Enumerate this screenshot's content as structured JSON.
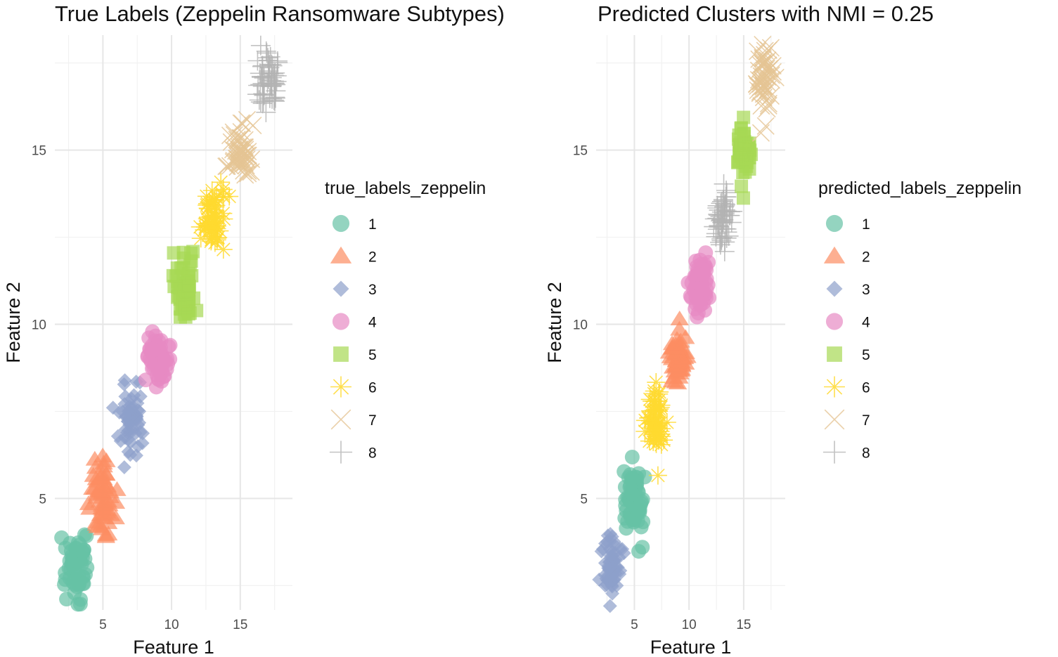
{
  "palette": [
    "#66c2a5",
    "#fc8d62",
    "#8da0cb",
    "#e78ac3",
    "#a6d854",
    "#ffd92f",
    "#e5c494",
    "#b3b3b3"
  ],
  "shapes": [
    "circle",
    "triangle",
    "diamond",
    "circle",
    "square",
    "asterisk",
    "cross",
    "plus"
  ],
  "chart_data": [
    {
      "type": "scatter",
      "title": "True Labels (Zeppelin Ransomware Subtypes)",
      "xlabel": "Feature 1",
      "ylabel": "Feature 2",
      "xlim": [
        1.5,
        18.8
      ],
      "ylim": [
        1.8,
        18.3
      ],
      "xticks": [
        5,
        10,
        15
      ],
      "yticks": [
        5,
        10,
        15
      ],
      "xtick_labels": [
        "5",
        "10",
        "15"
      ],
      "ytick_labels": [
        "5",
        "10",
        "15"
      ],
      "grid": true,
      "legend_title": "true_labels_zeppelin",
      "legend_position": "right",
      "clusters": [
        {
          "label": "1",
          "center": [
            3,
            3
          ],
          "spread": [
            0.45,
            0.45
          ],
          "n": 60
        },
        {
          "label": "2",
          "center": [
            5,
            5
          ],
          "spread": [
            0.5,
            0.5
          ],
          "n": 60
        },
        {
          "label": "3",
          "center": [
            7,
            7.2
          ],
          "spread": [
            0.5,
            0.5
          ],
          "n": 60
        },
        {
          "label": "4",
          "center": [
            9,
            9
          ],
          "spread": [
            0.4,
            0.35
          ],
          "n": 60
        },
        {
          "label": "5",
          "center": [
            11,
            11
          ],
          "spread": [
            0.45,
            0.45
          ],
          "n": 60
        },
        {
          "label": "6",
          "center": [
            13,
            13
          ],
          "spread": [
            0.4,
            0.45
          ],
          "n": 60
        },
        {
          "label": "7",
          "center": [
            15,
            15
          ],
          "spread": [
            0.4,
            0.35
          ],
          "n": 60
        },
        {
          "label": "8",
          "center": [
            17,
            17
          ],
          "spread": [
            0.4,
            0.45
          ],
          "n": 60
        }
      ]
    },
    {
      "type": "scatter",
      "title": "Predicted Clusters with NMI = 0.25",
      "xlabel": "Feature 1",
      "ylabel": "Feature 2",
      "xlim": [
        1.5,
        18.8
      ],
      "ylim": [
        1.8,
        18.3
      ],
      "xticks": [
        5,
        10,
        15
      ],
      "yticks": [
        5,
        10,
        15
      ],
      "xtick_labels": [
        "5",
        "10",
        "15"
      ],
      "ytick_labels": [
        "5",
        "10",
        "15"
      ],
      "grid": true,
      "legend_title": "predicted_labels_zeppelin",
      "legend_position": "right",
      "clusters": [
        {
          "label": "3",
          "center": [
            3,
            3
          ],
          "spread": [
            0.4,
            0.45
          ],
          "n": 60
        },
        {
          "label": "1",
          "center": [
            5,
            5
          ],
          "spread": [
            0.4,
            0.5
          ],
          "n": 60
        },
        {
          "label": "6",
          "center": [
            7,
            7.2
          ],
          "spread": [
            0.45,
            0.5
          ],
          "n": 60
        },
        {
          "label": "2",
          "center": [
            9,
            9
          ],
          "spread": [
            0.4,
            0.4
          ],
          "n": 60
        },
        {
          "label": "4",
          "center": [
            11,
            11
          ],
          "spread": [
            0.4,
            0.45
          ],
          "n": 60
        },
        {
          "label": "8",
          "center": [
            13,
            13
          ],
          "spread": [
            0.4,
            0.45
          ],
          "n": 60
        },
        {
          "label": "5",
          "center": [
            15,
            15
          ],
          "spread": [
            0.35,
            0.35
          ],
          "n": 60
        },
        {
          "label": "7",
          "center": [
            17,
            17
          ],
          "spread": [
            0.4,
            0.45
          ],
          "n": 60
        }
      ]
    }
  ],
  "legend_entries": [
    "1",
    "2",
    "3",
    "4",
    "5",
    "6",
    "7",
    "8"
  ]
}
